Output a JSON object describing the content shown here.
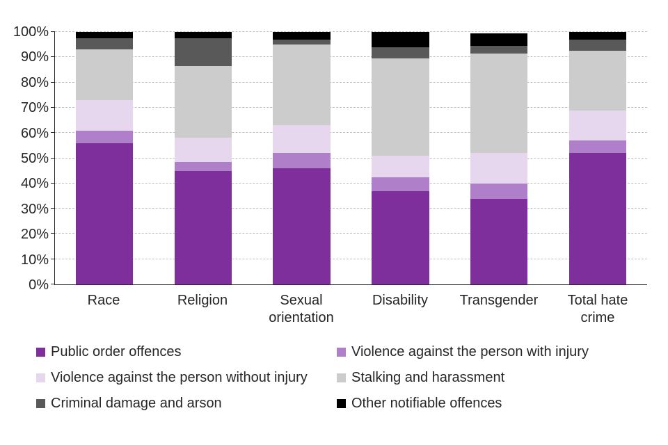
{
  "chart_data": {
    "type": "bar",
    "stacked": true,
    "percent": true,
    "title": "",
    "xlabel": "",
    "ylabel": "",
    "ylim": [
      0,
      100
    ],
    "y_ticks": [
      "0%",
      "10%",
      "20%",
      "30%",
      "40%",
      "50%",
      "60%",
      "70%",
      "80%",
      "90%",
      "100%"
    ],
    "grid": "dashed-horizontal",
    "legend_position": "bottom-two-columns",
    "categories": [
      "Race",
      "Religion",
      "Sexual orientation",
      "Disability",
      "Transgender",
      "Total hate crime"
    ],
    "series": [
      {
        "name": "Public order offences",
        "color": "#7e2f9c",
        "values": [
          56,
          45,
          46,
          37,
          34,
          52
        ]
      },
      {
        "name": "Violence against the person with injury",
        "color": "#b07fc9",
        "values": [
          5,
          3.5,
          6,
          5.5,
          6,
          5
        ]
      },
      {
        "name": "Violence against the person without injury",
        "color": "#e6d7ee",
        "values": [
          12,
          9.5,
          11,
          8.5,
          12,
          12
        ]
      },
      {
        "name": "Stalking and harassment",
        "color": "#cccccc",
        "values": [
          20,
          28.5,
          32,
          38.5,
          39.5,
          23.5
        ]
      },
      {
        "name": "Criminal damage and arson",
        "color": "#595959",
        "values": [
          4.5,
          11,
          2,
          4.5,
          3,
          4.5
        ]
      },
      {
        "name": "Other notifiable offences",
        "color": "#000000",
        "values": [
          2.5,
          2.5,
          3,
          6,
          5,
          3
        ]
      }
    ]
  }
}
